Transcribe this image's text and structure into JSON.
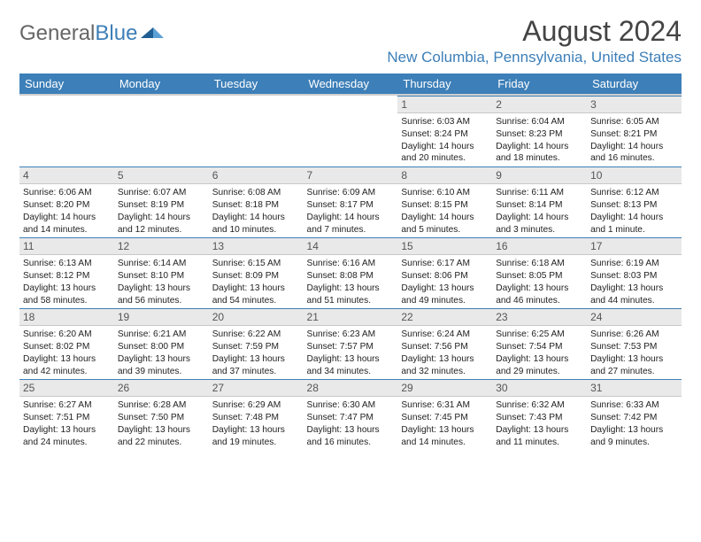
{
  "brand": {
    "part1": "General",
    "part2": "Blue"
  },
  "title": "August 2024",
  "location": "New Columbia, Pennsylvania, United States",
  "palette": {
    "accent": "#3d7fb8",
    "header_text": "#ffffff",
    "daybar_bg": "#e9e9e9",
    "text": "#222222",
    "muted": "#666666"
  },
  "weekdays": [
    "Sunday",
    "Monday",
    "Tuesday",
    "Wednesday",
    "Thursday",
    "Friday",
    "Saturday"
  ],
  "weeks": [
    [
      null,
      null,
      null,
      null,
      {
        "n": "1",
        "sr": "6:03 AM",
        "ss": "8:24 PM",
        "dl1": "Daylight: 14 hours",
        "dl2": "and 20 minutes."
      },
      {
        "n": "2",
        "sr": "6:04 AM",
        "ss": "8:23 PM",
        "dl1": "Daylight: 14 hours",
        "dl2": "and 18 minutes."
      },
      {
        "n": "3",
        "sr": "6:05 AM",
        "ss": "8:21 PM",
        "dl1": "Daylight: 14 hours",
        "dl2": "and 16 minutes."
      }
    ],
    [
      {
        "n": "4",
        "sr": "6:06 AM",
        "ss": "8:20 PM",
        "dl1": "Daylight: 14 hours",
        "dl2": "and 14 minutes."
      },
      {
        "n": "5",
        "sr": "6:07 AM",
        "ss": "8:19 PM",
        "dl1": "Daylight: 14 hours",
        "dl2": "and 12 minutes."
      },
      {
        "n": "6",
        "sr": "6:08 AM",
        "ss": "8:18 PM",
        "dl1": "Daylight: 14 hours",
        "dl2": "and 10 minutes."
      },
      {
        "n": "7",
        "sr": "6:09 AM",
        "ss": "8:17 PM",
        "dl1": "Daylight: 14 hours",
        "dl2": "and 7 minutes."
      },
      {
        "n": "8",
        "sr": "6:10 AM",
        "ss": "8:15 PM",
        "dl1": "Daylight: 14 hours",
        "dl2": "and 5 minutes."
      },
      {
        "n": "9",
        "sr": "6:11 AM",
        "ss": "8:14 PM",
        "dl1": "Daylight: 14 hours",
        "dl2": "and 3 minutes."
      },
      {
        "n": "10",
        "sr": "6:12 AM",
        "ss": "8:13 PM",
        "dl1": "Daylight: 14 hours",
        "dl2": "and 1 minute."
      }
    ],
    [
      {
        "n": "11",
        "sr": "6:13 AM",
        "ss": "8:12 PM",
        "dl1": "Daylight: 13 hours",
        "dl2": "and 58 minutes."
      },
      {
        "n": "12",
        "sr": "6:14 AM",
        "ss": "8:10 PM",
        "dl1": "Daylight: 13 hours",
        "dl2": "and 56 minutes."
      },
      {
        "n": "13",
        "sr": "6:15 AM",
        "ss": "8:09 PM",
        "dl1": "Daylight: 13 hours",
        "dl2": "and 54 minutes."
      },
      {
        "n": "14",
        "sr": "6:16 AM",
        "ss": "8:08 PM",
        "dl1": "Daylight: 13 hours",
        "dl2": "and 51 minutes."
      },
      {
        "n": "15",
        "sr": "6:17 AM",
        "ss": "8:06 PM",
        "dl1": "Daylight: 13 hours",
        "dl2": "and 49 minutes."
      },
      {
        "n": "16",
        "sr": "6:18 AM",
        "ss": "8:05 PM",
        "dl1": "Daylight: 13 hours",
        "dl2": "and 46 minutes."
      },
      {
        "n": "17",
        "sr": "6:19 AM",
        "ss": "8:03 PM",
        "dl1": "Daylight: 13 hours",
        "dl2": "and 44 minutes."
      }
    ],
    [
      {
        "n": "18",
        "sr": "6:20 AM",
        "ss": "8:02 PM",
        "dl1": "Daylight: 13 hours",
        "dl2": "and 42 minutes."
      },
      {
        "n": "19",
        "sr": "6:21 AM",
        "ss": "8:00 PM",
        "dl1": "Daylight: 13 hours",
        "dl2": "and 39 minutes."
      },
      {
        "n": "20",
        "sr": "6:22 AM",
        "ss": "7:59 PM",
        "dl1": "Daylight: 13 hours",
        "dl2": "and 37 minutes."
      },
      {
        "n": "21",
        "sr": "6:23 AM",
        "ss": "7:57 PM",
        "dl1": "Daylight: 13 hours",
        "dl2": "and 34 minutes."
      },
      {
        "n": "22",
        "sr": "6:24 AM",
        "ss": "7:56 PM",
        "dl1": "Daylight: 13 hours",
        "dl2": "and 32 minutes."
      },
      {
        "n": "23",
        "sr": "6:25 AM",
        "ss": "7:54 PM",
        "dl1": "Daylight: 13 hours",
        "dl2": "and 29 minutes."
      },
      {
        "n": "24",
        "sr": "6:26 AM",
        "ss": "7:53 PM",
        "dl1": "Daylight: 13 hours",
        "dl2": "and 27 minutes."
      }
    ],
    [
      {
        "n": "25",
        "sr": "6:27 AM",
        "ss": "7:51 PM",
        "dl1": "Daylight: 13 hours",
        "dl2": "and 24 minutes."
      },
      {
        "n": "26",
        "sr": "6:28 AM",
        "ss": "7:50 PM",
        "dl1": "Daylight: 13 hours",
        "dl2": "and 22 minutes."
      },
      {
        "n": "27",
        "sr": "6:29 AM",
        "ss": "7:48 PM",
        "dl1": "Daylight: 13 hours",
        "dl2": "and 19 minutes."
      },
      {
        "n": "28",
        "sr": "6:30 AM",
        "ss": "7:47 PM",
        "dl1": "Daylight: 13 hours",
        "dl2": "and 16 minutes."
      },
      {
        "n": "29",
        "sr": "6:31 AM",
        "ss": "7:45 PM",
        "dl1": "Daylight: 13 hours",
        "dl2": "and 14 minutes."
      },
      {
        "n": "30",
        "sr": "6:32 AM",
        "ss": "7:43 PM",
        "dl1": "Daylight: 13 hours",
        "dl2": "and 11 minutes."
      },
      {
        "n": "31",
        "sr": "6:33 AM",
        "ss": "7:42 PM",
        "dl1": "Daylight: 13 hours",
        "dl2": "and 9 minutes."
      }
    ]
  ],
  "labels": {
    "sunrise": "Sunrise:",
    "sunset": "Sunset:"
  }
}
